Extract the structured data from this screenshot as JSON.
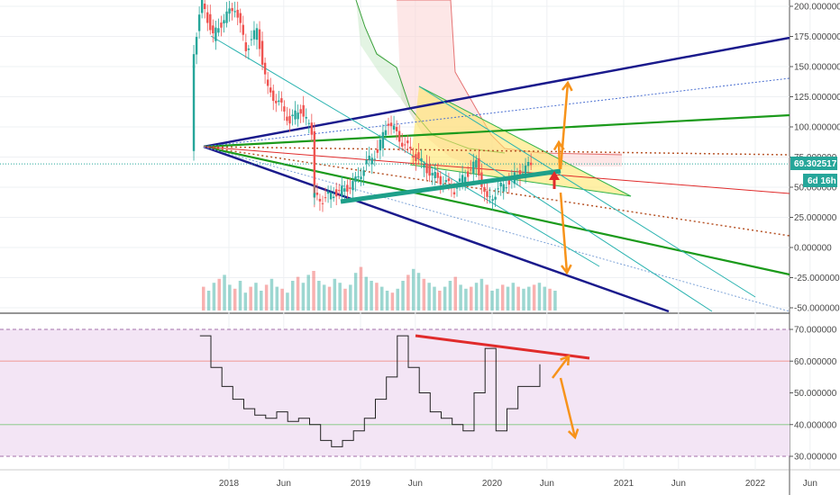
{
  "chart_data": [
    {
      "type": "candlestick",
      "panel": "price",
      "ylim": [
        -50,
        210
      ],
      "y_ticks": [
        {
          "value": 200,
          "label": "200.000000"
        },
        {
          "value": 175,
          "label": "175.000000"
        },
        {
          "value": 150,
          "label": "150.000000"
        },
        {
          "value": 125,
          "label": "125.000000"
        },
        {
          "value": 100,
          "label": "100.000000"
        },
        {
          "value": 75,
          "label": "75.000000"
        },
        {
          "value": 50,
          "label": "50.000000"
        },
        {
          "value": 25,
          "label": "25.000000"
        },
        {
          "value": 0,
          "label": "0.000000"
        },
        {
          "value": -25,
          "label": "-25.000000"
        },
        {
          "value": -50,
          "label": "-50.000000"
        }
      ],
      "last_price": {
        "value": 69.302517,
        "label": "69.302517"
      },
      "countdown_label": "6d 16h",
      "price_path": [
        [
          "2017-12",
          80
        ],
        [
          "2017-12",
          150
        ],
        [
          "2018-01",
          205
        ],
        [
          "2018-02",
          175
        ],
        [
          "2018-03",
          190
        ],
        [
          "2018-04",
          200
        ],
        [
          "2018-05",
          165
        ],
        [
          "2018-06",
          180
        ],
        [
          "2018-07",
          130
        ],
        [
          "2018-08",
          120
        ],
        [
          "2018-09",
          105
        ],
        [
          "2018-10",
          115
        ],
        [
          "2018-11",
          95
        ],
        [
          "2018-11",
          42
        ],
        [
          "2018-12",
          40
        ],
        [
          "2019-01",
          45
        ],
        [
          "2019-02",
          48
        ],
        [
          "2019-03",
          55
        ],
        [
          "2019-04",
          70
        ],
        [
          "2019-05",
          80
        ],
        [
          "2019-06",
          105
        ],
        [
          "2019-07",
          90
        ],
        [
          "2019-08",
          80
        ],
        [
          "2019-09",
          70
        ],
        [
          "2019-10",
          60
        ],
        [
          "2019-11",
          55
        ],
        [
          "2019-12",
          48
        ],
        [
          "2020-01",
          60
        ],
        [
          "2020-02",
          70
        ],
        [
          "2020-03",
          38
        ],
        [
          "2020-04",
          48
        ],
        [
          "2020-05",
          55
        ],
        [
          "2020-06",
          62
        ],
        [
          "2020-07",
          69
        ]
      ],
      "volume": [
        12,
        10,
        14,
        16,
        18,
        13,
        11,
        15,
        9,
        12,
        14,
        10,
        13,
        16,
        12,
        11,
        9,
        15,
        17,
        14,
        18,
        20,
        15,
        13,
        12,
        16,
        14,
        11,
        13,
        19,
        22,
        17,
        15,
        14,
        12,
        10,
        9,
        11,
        15,
        18,
        21,
        19,
        16,
        14,
        12,
        10,
        12,
        15,
        17,
        13,
        11,
        12,
        14,
        16,
        13,
        10,
        11,
        13,
        12,
        14,
        12,
        11,
        12,
        13,
        14,
        12,
        11,
        10
      ]
    },
    {
      "type": "line",
      "panel": "rsi",
      "ylim": [
        27,
        72
      ],
      "y_ticks": [
        {
          "value": 70,
          "label": "70.000000"
        },
        {
          "value": 60,
          "label": "60.000000"
        },
        {
          "value": 50,
          "label": "50.000000"
        },
        {
          "value": 40,
          "label": "40.000000"
        },
        {
          "value": 30,
          "label": "30.000000"
        }
      ],
      "levels": [
        70,
        60,
        40,
        30
      ],
      "rsi": [
        [
          "2017-12",
          68
        ],
        [
          "2018-01",
          58
        ],
        [
          "2018-02",
          52
        ],
        [
          "2018-03",
          48
        ],
        [
          "2018-04",
          45
        ],
        [
          "2018-05",
          43
        ],
        [
          "2018-06",
          42
        ],
        [
          "2018-07",
          44
        ],
        [
          "2018-08",
          41
        ],
        [
          "2018-09",
          42
        ],
        [
          "2018-10",
          40
        ],
        [
          "2018-11",
          35
        ],
        [
          "2018-12",
          33
        ],
        [
          "2019-01",
          35
        ],
        [
          "2019-02",
          38
        ],
        [
          "2019-03",
          42
        ],
        [
          "2019-04",
          48
        ],
        [
          "2019-05",
          55
        ],
        [
          "2019-06",
          68
        ],
        [
          "2019-07",
          58
        ],
        [
          "2019-08",
          50
        ],
        [
          "2019-09",
          44
        ],
        [
          "2019-10",
          42
        ],
        [
          "2019-11",
          40
        ],
        [
          "2019-12",
          38
        ],
        [
          "2020-01",
          50
        ],
        [
          "2020-02",
          64
        ],
        [
          "2020-03",
          38
        ],
        [
          "2020-04",
          45
        ],
        [
          "2020-05",
          52
        ],
        [
          "2020-06",
          52
        ],
        [
          "2020-07",
          59
        ]
      ]
    }
  ],
  "x_axis": {
    "ticks": [
      {
        "date": "2018-01",
        "label": "2018"
      },
      {
        "date": "2018-06",
        "label": "Jun"
      },
      {
        "date": "2019-01",
        "label": "2019"
      },
      {
        "date": "2019-06",
        "label": "Jun"
      },
      {
        "date": "2020-01",
        "label": "2020"
      },
      {
        "date": "2020-06",
        "label": "Jun"
      },
      {
        "date": "2021-01",
        "label": "2021"
      },
      {
        "date": "2021-06",
        "label": "Jun"
      },
      {
        "date": "2022-01",
        "label": "2022"
      },
      {
        "date": "2022-06",
        "label": "Jun"
      }
    ]
  },
  "colors": {
    "up": "#26a69a",
    "down": "#ef5350",
    "fan_navy": "#1a1a8c",
    "fan_green": "#1b9a1b",
    "fan_teal": "#2ab3b0",
    "trend_red": "#e02b2b",
    "arrow_orange": "#f7931a",
    "triangle_fill": "#ffe66b",
    "rsi_bg": "#f3e5f5",
    "price_badge": "#26a69a",
    "countdown_badge": "#26a69a"
  }
}
